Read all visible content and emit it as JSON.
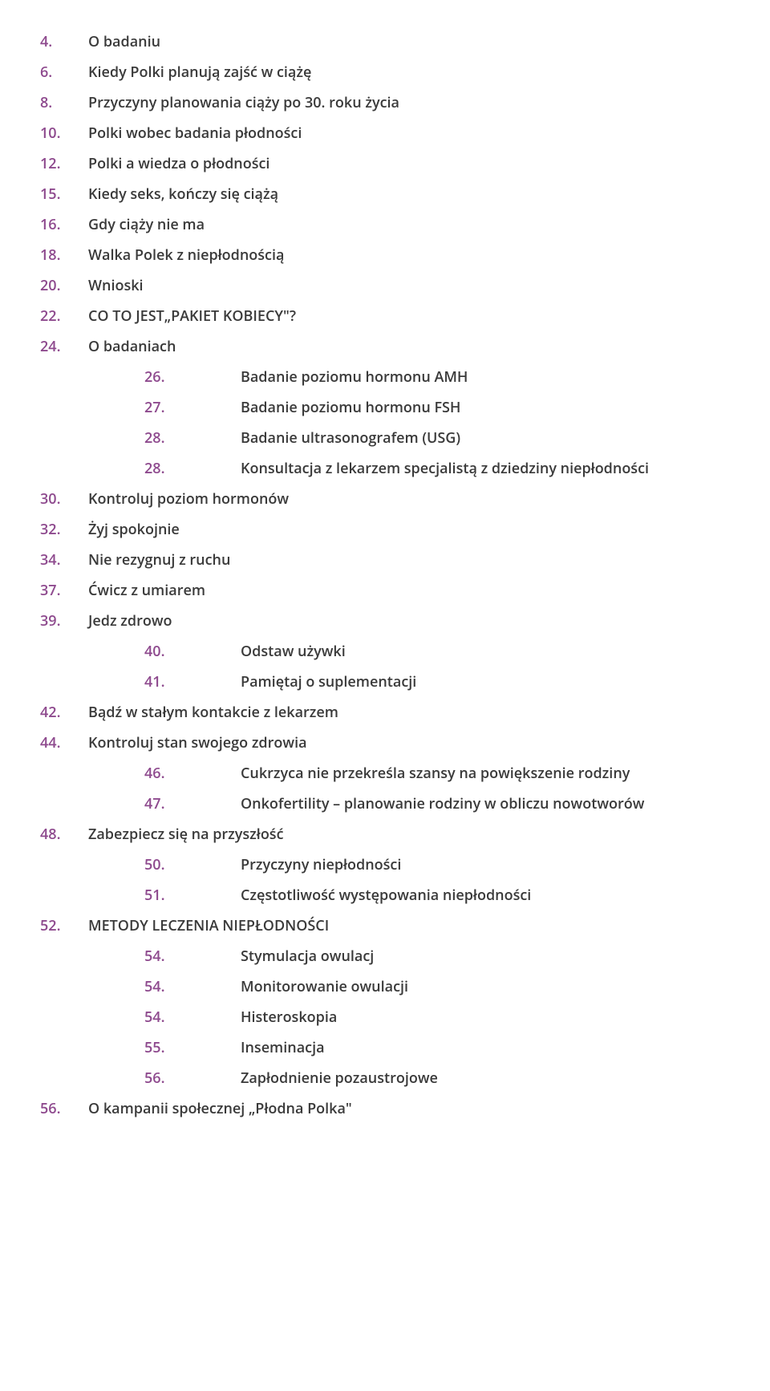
{
  "colors": {
    "number": "#8e4a8e",
    "text": "#3a3a3a",
    "background": "#ffffff"
  },
  "fontsize": 18,
  "fontweight": 600,
  "items": [
    {
      "num": "4.",
      "text": "O badaniu",
      "indent": 0
    },
    {
      "num": "6.",
      "text": "Kiedy Polki planują zajść w ciążę",
      "indent": 0
    },
    {
      "num": "8.",
      "text": "Przyczyny planowania ciąży po 30. roku życia",
      "indent": 0
    },
    {
      "num": "10.",
      "text": "Polki wobec badania płodności",
      "indent": 0
    },
    {
      "num": "12.",
      "text": "Polki a wiedza o płodności",
      "indent": 0
    },
    {
      "num": "15.",
      "text": "Kiedy seks, kończy się ciążą",
      "indent": 0
    },
    {
      "num": "16.",
      "text": "Gdy ciąży nie ma",
      "indent": 0
    },
    {
      "num": "18.",
      "text": "Walka Polek z niepłodnością",
      "indent": 0
    },
    {
      "num": "20.",
      "text": "Wnioski",
      "indent": 0
    },
    {
      "num": "22.",
      "text": "CO TO JEST„PAKIET KOBIECY\"?",
      "indent": 0
    },
    {
      "num": "24.",
      "text": "O badaniach",
      "indent": 0
    },
    {
      "num": "26.",
      "text": "Badanie poziomu hormonu AMH",
      "indent": 1
    },
    {
      "num": "27.",
      "text": "Badanie poziomu hormonu FSH",
      "indent": 1
    },
    {
      "num": "28.",
      "text": "Badanie ultrasonografem (USG)",
      "indent": 1
    },
    {
      "num": "28.",
      "text": "Konsultacja z lekarzem specjalistą  z dziedziny niepłodności",
      "indent": 1
    },
    {
      "num": "30.",
      "text": "Kontroluj poziom hormonów",
      "indent": 0
    },
    {
      "num": "32.",
      "text": "Żyj spokojnie",
      "indent": 0
    },
    {
      "num": "34.",
      "text": "Nie rezygnuj z ruchu",
      "indent": 0
    },
    {
      "num": "37.",
      "text": "Ćwicz z umiarem",
      "indent": 0
    },
    {
      "num": "39.",
      "text": "Jedz zdrowo",
      "indent": 0
    },
    {
      "num": "40.",
      "text": "Odstaw używki",
      "indent": 1
    },
    {
      "num": "41.",
      "text": "Pamiętaj o suplementacji",
      "indent": 1
    },
    {
      "num": "42.",
      "text": "Bądź w stałym kontakcie z lekarzem",
      "indent": 0
    },
    {
      "num": "44.",
      "text": "Kontroluj stan swojego zdrowia",
      "indent": 0
    },
    {
      "num": "46.",
      "text": "Cukrzyca nie przekreśla szansy na powiększenie rodziny",
      "indent": 1
    },
    {
      "num": "47.",
      "text": "Onkofertility – planowanie rodziny w obliczu nowotworów",
      "indent": 1
    },
    {
      "num": "48.",
      "text": "Zabezpiecz się na przyszłość",
      "indent": 0
    },
    {
      "num": "50.",
      "text": "Przyczyny niepłodności",
      "indent": 1
    },
    {
      "num": "51.",
      "text": "Częstotliwość występowania niepłodności",
      "indent": 1
    },
    {
      "num": "52.",
      "text": "METODY LECZENIA NIEPŁODNOŚCI",
      "indent": 0
    },
    {
      "num": "54.",
      "text": "Stymulacja owulacj",
      "indent": 1
    },
    {
      "num": "54.",
      "text": "Monitorowanie owulacji",
      "indent": 1
    },
    {
      "num": "54.",
      "text": "Histeroskopia",
      "indent": 1
    },
    {
      "num": "55.",
      "text": "Inseminacja",
      "indent": 1
    },
    {
      "num": "56.",
      "text": "Zapłodnienie pozaustrojowe",
      "indent": 1
    },
    {
      "num": "56.",
      "text": "O kampanii społecznej „Płodna Polka\"",
      "indent": 0
    }
  ]
}
